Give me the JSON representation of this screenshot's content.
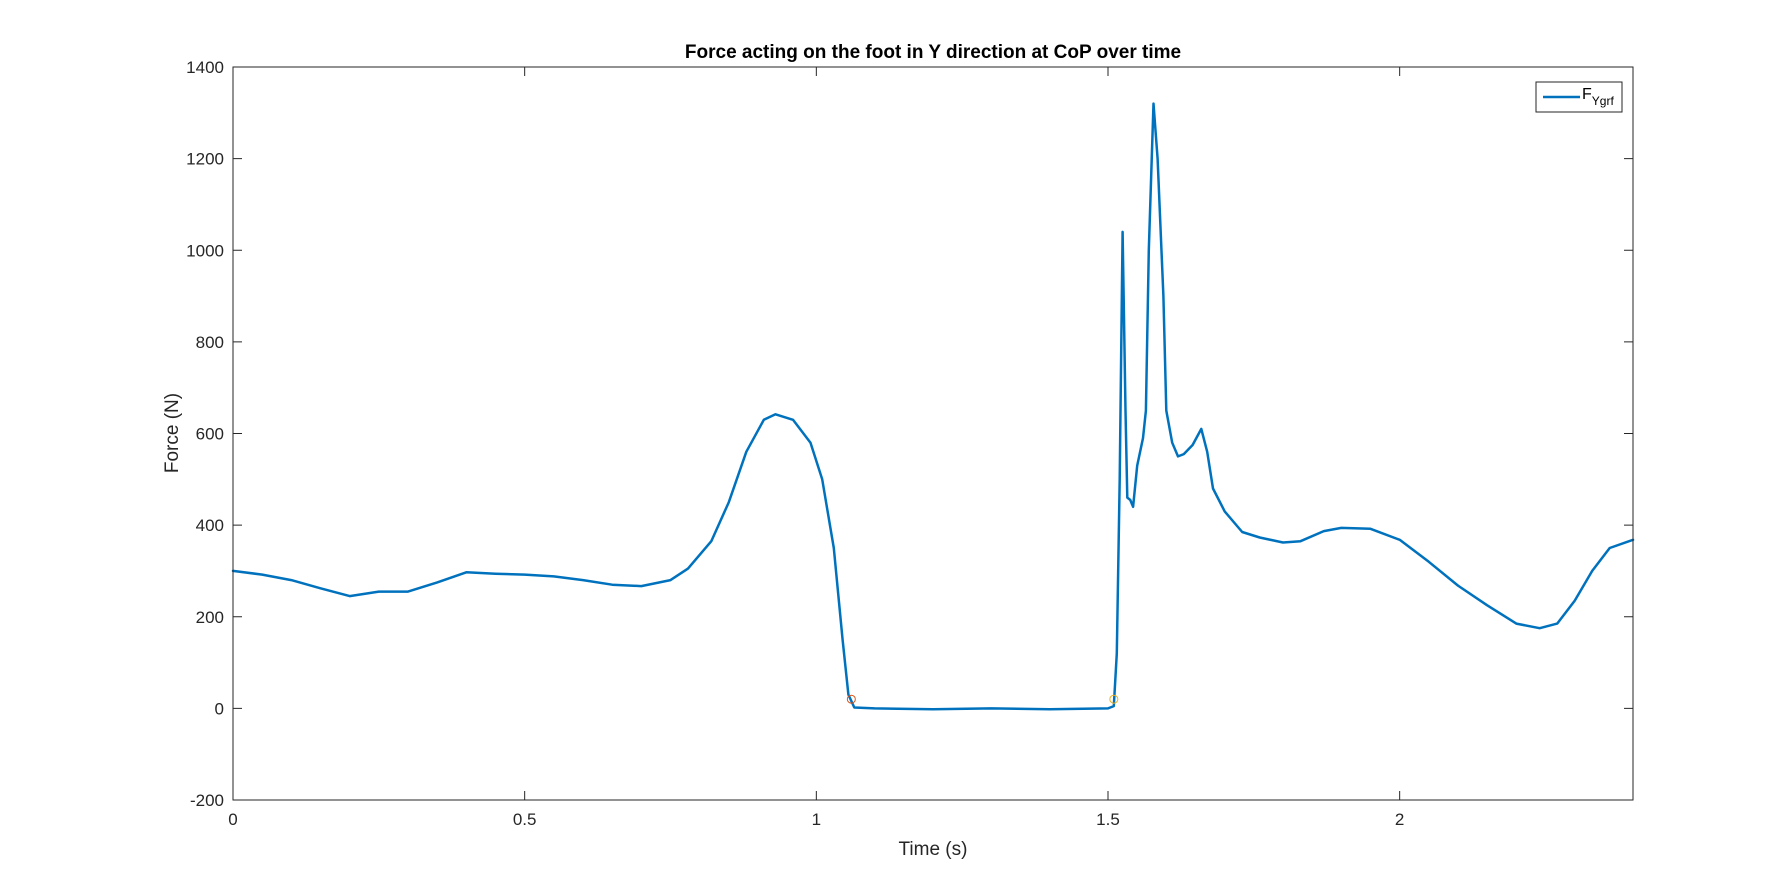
{
  "chart_data": {
    "type": "line",
    "title": "Force acting on the foot in Y direction at CoP over time",
    "xlabel": "Time (s)",
    "ylabel": "Force (N)",
    "xlim": [
      0,
      2.4
    ],
    "ylim": [
      -200,
      1400
    ],
    "xticks": [
      0,
      0.5,
      1,
      1.5,
      2
    ],
    "xtick_labels": [
      "0",
      "0.5",
      "1",
      "1.5",
      "2"
    ],
    "yticks": [
      -200,
      0,
      200,
      400,
      600,
      800,
      1000,
      1200,
      1400
    ],
    "ytick_labels": [
      "-200",
      "0",
      "200",
      "400",
      "600",
      "800",
      "1000",
      "1200",
      "1400"
    ],
    "grid": false,
    "legend_position": "top-right",
    "legend": {
      "main": "F",
      "subscript": "Ygrf"
    },
    "series": [
      {
        "name": "F_Ygrf",
        "color": "#0072BD",
        "points": [
          [
            0,
            300
          ],
          [
            0.05,
            292
          ],
          [
            0.1,
            280
          ],
          [
            0.15,
            262
          ],
          [
            0.2,
            245
          ],
          [
            0.25,
            255
          ],
          [
            0.3,
            255
          ],
          [
            0.35,
            275
          ],
          [
            0.4,
            297
          ],
          [
            0.45,
            294
          ],
          [
            0.5,
            292
          ],
          [
            0.55,
            288
          ],
          [
            0.6,
            280
          ],
          [
            0.65,
            270
          ],
          [
            0.7,
            267
          ],
          [
            0.75,
            280
          ],
          [
            0.78,
            305
          ],
          [
            0.82,
            365
          ],
          [
            0.85,
            450
          ],
          [
            0.88,
            560
          ],
          [
            0.91,
            630
          ],
          [
            0.93,
            642
          ],
          [
            0.96,
            630
          ],
          [
            0.99,
            580
          ],
          [
            1.01,
            500
          ],
          [
            1.03,
            350
          ],
          [
            1.045,
            150
          ],
          [
            1.055,
            30
          ],
          [
            1.065,
            2
          ],
          [
            1.1,
            0
          ],
          [
            1.2,
            -2
          ],
          [
            1.3,
            0
          ],
          [
            1.4,
            -2
          ],
          [
            1.5,
            0
          ],
          [
            1.51,
            5
          ],
          [
            1.515,
            120
          ],
          [
            1.52,
            500
          ],
          [
            1.525,
            1040
          ],
          [
            1.53,
            650
          ],
          [
            1.533,
            460
          ],
          [
            1.538,
            455
          ],
          [
            1.543,
            440
          ],
          [
            1.55,
            530
          ],
          [
            1.56,
            590
          ],
          [
            1.565,
            650
          ],
          [
            1.57,
            1000
          ],
          [
            1.578,
            1320
          ],
          [
            1.585,
            1200
          ],
          [
            1.595,
            900
          ],
          [
            1.6,
            650
          ],
          [
            1.61,
            580
          ],
          [
            1.62,
            550
          ],
          [
            1.63,
            555
          ],
          [
            1.645,
            575
          ],
          [
            1.66,
            610
          ],
          [
            1.67,
            560
          ],
          [
            1.68,
            480
          ],
          [
            1.7,
            430
          ],
          [
            1.73,
            385
          ],
          [
            1.76,
            373
          ],
          [
            1.8,
            362
          ],
          [
            1.83,
            365
          ],
          [
            1.87,
            387
          ],
          [
            1.9,
            394
          ],
          [
            1.95,
            392
          ],
          [
            2.0,
            368
          ],
          [
            2.05,
            320
          ],
          [
            2.1,
            268
          ],
          [
            2.15,
            225
          ],
          [
            2.2,
            185
          ],
          [
            2.24,
            175
          ],
          [
            2.27,
            185
          ],
          [
            2.3,
            235
          ],
          [
            2.33,
            300
          ],
          [
            2.36,
            350
          ],
          [
            2.4,
            368
          ]
        ]
      }
    ],
    "markers": [
      {
        "x": 1.06,
        "y": 20,
        "color": "#D95319"
      },
      {
        "x": 1.51,
        "y": 20,
        "color": "#EDB120"
      }
    ]
  }
}
